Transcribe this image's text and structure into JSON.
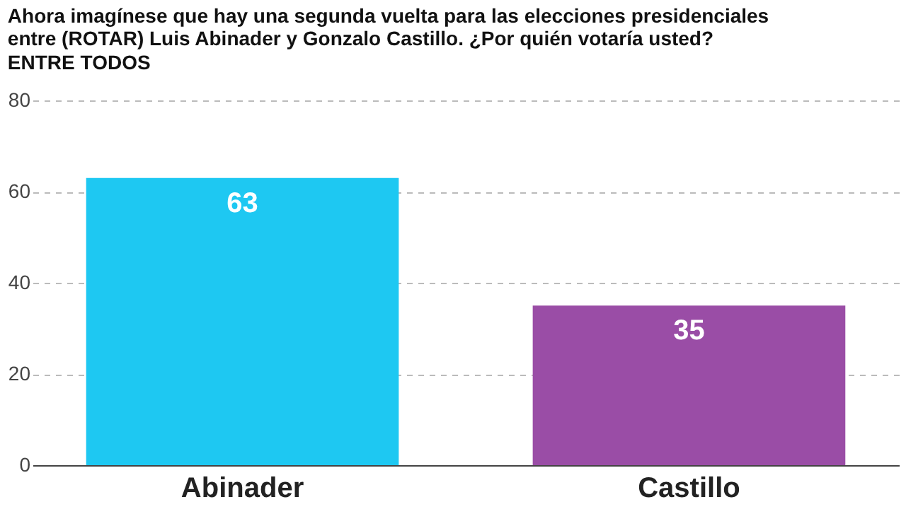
{
  "chart_data": {
    "type": "bar",
    "title": "Ahora imagínese que hay una segunda vuelta para las elecciones presidenciales entre (ROTAR) Luis Abinader y Gonzalo Castillo. ¿Por quién votaría usted?",
    "subtitle": "ENTRE TODOS",
    "categories": [
      "Abinader",
      "Castillo"
    ],
    "values": [
      63,
      35
    ],
    "colors": [
      "#1ec8f2",
      "#9a4da6"
    ],
    "ylim": [
      0,
      80
    ],
    "yticks": [
      0,
      20,
      40,
      60,
      80
    ],
    "grid": "y",
    "data_labels": true,
    "legend": false
  }
}
